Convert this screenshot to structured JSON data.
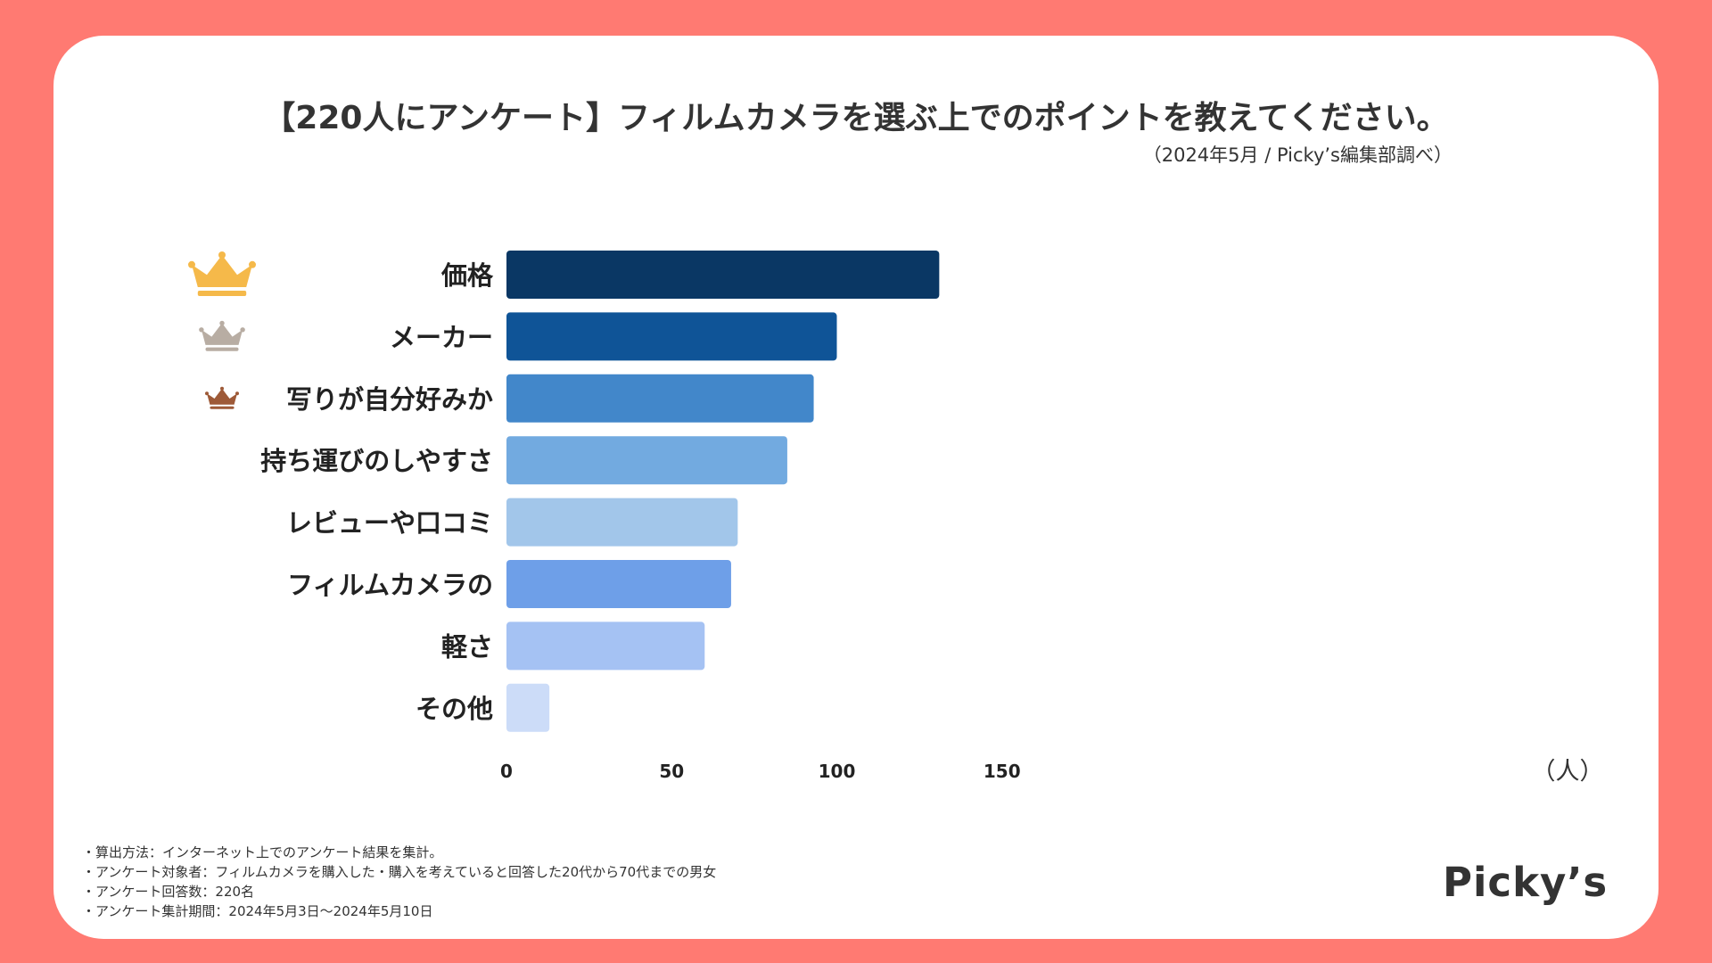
{
  "title": "【220人にアンケート】フィルムカメラを選ぶ上でのポイントを教えてください。",
  "subtitle": "（2024年5月 / Picky’s編集部調べ）",
  "chart_data": {
    "type": "bar",
    "orientation": "horizontal",
    "categories": [
      "価格",
      "メーカー",
      "写りが自分好みか",
      "持ち運びのしやすさ",
      "レビューや口コミ",
      "フィルムカメラの",
      "軽さ",
      "その他"
    ],
    "values": [
      131,
      100,
      93,
      85,
      70,
      68,
      60,
      13
    ],
    "colors": [
      "#0A3764",
      "#0F5497",
      "#4287CA",
      "#72AAE0",
      "#A2C6EA",
      "#6E9FE8",
      "#A5C2F3",
      "#CCDCF8"
    ],
    "xlim": [
      0,
      150
    ],
    "xticks": [
      0,
      50,
      100,
      150
    ],
    "unit_label": "（人）",
    "rank_icons": [
      {
        "rank": 1,
        "icon": "gold-crown-icon",
        "color": "#F5B94A"
      },
      {
        "rank": 2,
        "icon": "silver-crown-icon",
        "color": "#B8ADA3"
      },
      {
        "rank": 3,
        "icon": "bronze-crown-icon",
        "color": "#9E5A38"
      }
    ]
  },
  "notes": [
    "・算出方法：インターネット上でのアンケート結果を集計。",
    "・アンケート対象者：フィルムカメラを購入した・購入を考えていると回答した20代から70代までの男女",
    "・アンケート回答数：220名",
    "・アンケート集計期間：2024年5月3日〜2024年5月10日"
  ],
  "brand": "Picky’s"
}
